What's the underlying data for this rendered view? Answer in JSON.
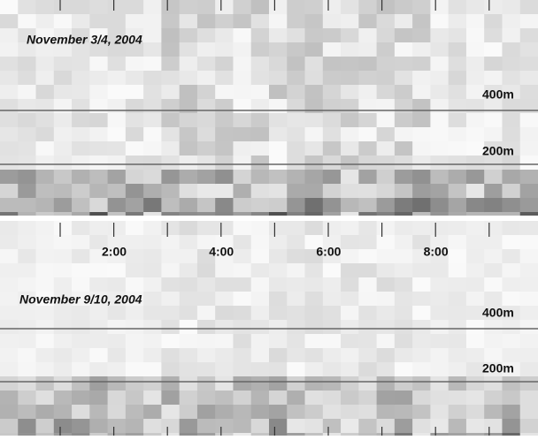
{
  "panels": [
    {
      "title": "November 3/4, 2004",
      "levels": [
        "400m",
        "200m"
      ]
    },
    {
      "title": "November 9/10, 2004",
      "levels": [
        "400m",
        "200m"
      ]
    }
  ],
  "time_labels": [
    "2:00",
    "4:00",
    "6:00",
    "8:00"
  ]
}
